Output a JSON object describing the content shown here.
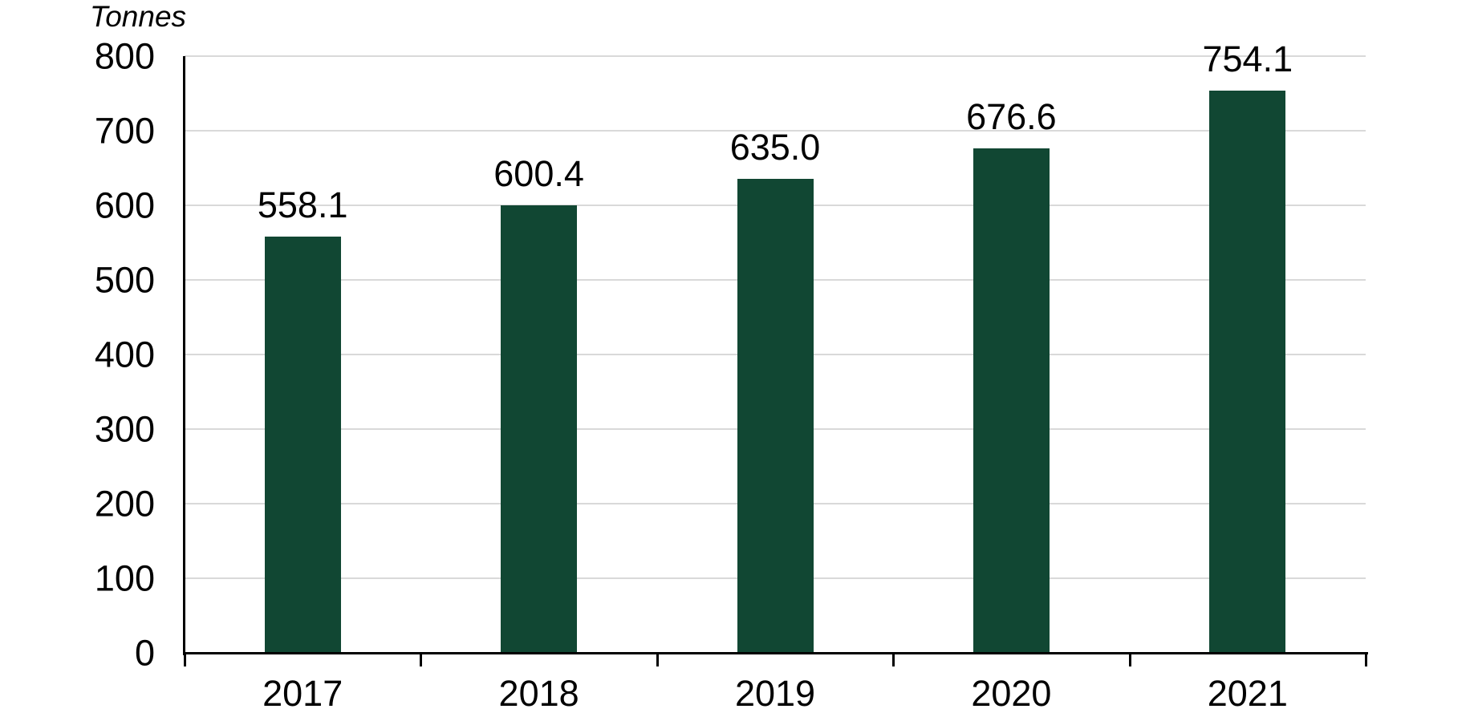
{
  "chart_data": {
    "type": "bar",
    "title": "",
    "ylabel": "Tonnes",
    "xlabel": "",
    "categories": [
      "2017",
      "2018",
      "2019",
      "2020",
      "2021"
    ],
    "values": [
      558.1,
      600.4,
      635.0,
      676.6,
      754.1
    ],
    "data_labels": [
      "558.1",
      "600.4",
      "635.0",
      "676.6",
      "754.1"
    ],
    "ylim": [
      0,
      800
    ],
    "yticks": [
      0,
      100,
      200,
      300,
      400,
      500,
      600,
      700,
      800
    ],
    "grid": "horizontal",
    "legend_position": "none",
    "colors": {
      "bar": "#114733",
      "gridline": "#d9d9d9",
      "axis": "#000000",
      "text": "#000000",
      "background": "#ffffff"
    }
  }
}
